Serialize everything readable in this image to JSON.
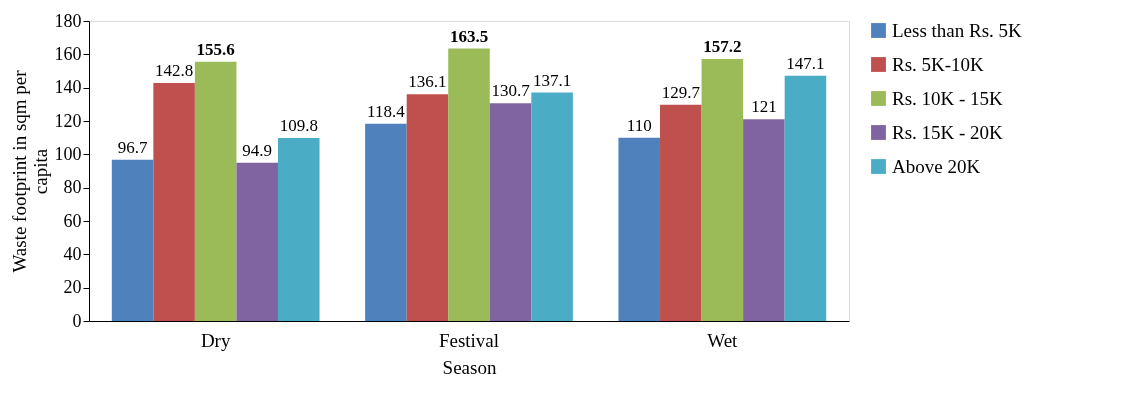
{
  "chart_data": {
    "type": "bar",
    "xlabel": "Season",
    "ylabel": "Waste footprint in sqm per capita",
    "categories": [
      "Dry",
      "Festival",
      "Wet"
    ],
    "series": [
      {
        "name": "Less than Rs. 5K",
        "color": "#4f81bd",
        "values": [
          96.7,
          118.4,
          110
        ]
      },
      {
        "name": "Rs. 5K-10K",
        "color": "#c0504d",
        "values": [
          142.8,
          136.1,
          129.7
        ]
      },
      {
        "name": "Rs. 10K - 15K",
        "color": "#9bbb59",
        "values": [
          155.6,
          163.5,
          157.2
        ]
      },
      {
        "name": "Rs. 15K - 20K",
        "color": "#8064a2",
        "values": [
          94.9,
          130.7,
          121
        ]
      },
      {
        "name": "Above 20K",
        "color": "#4bacc6",
        "values": [
          109.8,
          137.1,
          147.1
        ]
      }
    ],
    "ylim": [
      0,
      180
    ],
    "yticks": [
      0,
      20,
      40,
      60,
      80,
      100,
      120,
      140,
      160,
      180
    ],
    "data_labels": true,
    "legend": "right",
    "grid": false
  }
}
